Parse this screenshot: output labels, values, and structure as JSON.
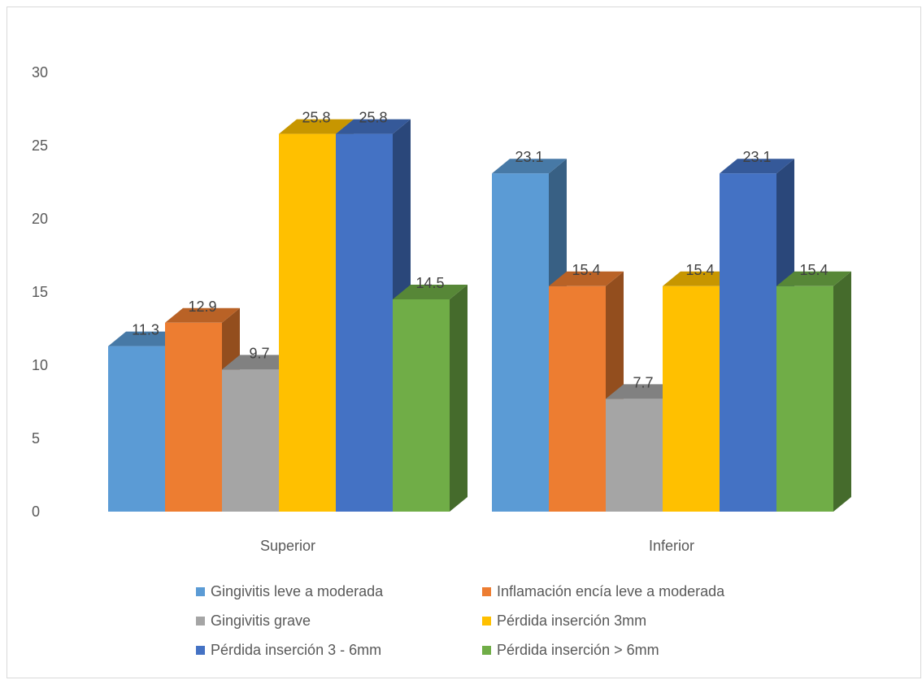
{
  "chart_data": {
    "type": "bar",
    "title": "",
    "xlabel": "",
    "ylabel": "",
    "ylim": [
      0,
      30
    ],
    "yticks": [
      0,
      5,
      10,
      15,
      20,
      25,
      30
    ],
    "categories": [
      "Superior",
      "Inferior"
    ],
    "grid": false,
    "legend_position": "bottom",
    "series": [
      {
        "name": "Gingivitis leve a moderada",
        "values": [
          11.3,
          23.1
        ],
        "color": "#5B9BD5"
      },
      {
        "name": "Inflamación encía leve a moderada",
        "values": [
          12.9,
          15.4
        ],
        "color": "#ED7D31"
      },
      {
        "name": "Gingivitis grave",
        "values": [
          9.7,
          7.7
        ],
        "color": "#A5A5A5"
      },
      {
        "name": "Pérdida inserción 3mm",
        "values": [
          25.8,
          15.4
        ],
        "color": "#FFC000"
      },
      {
        "name": "Pérdida inserción 3 - 6mm",
        "values": [
          25.8,
          23.1
        ],
        "color": "#4472C4"
      },
      {
        "name": "Pérdida inserción > 6mm",
        "values": [
          14.5,
          15.4
        ],
        "color": "#70AD47"
      }
    ]
  }
}
